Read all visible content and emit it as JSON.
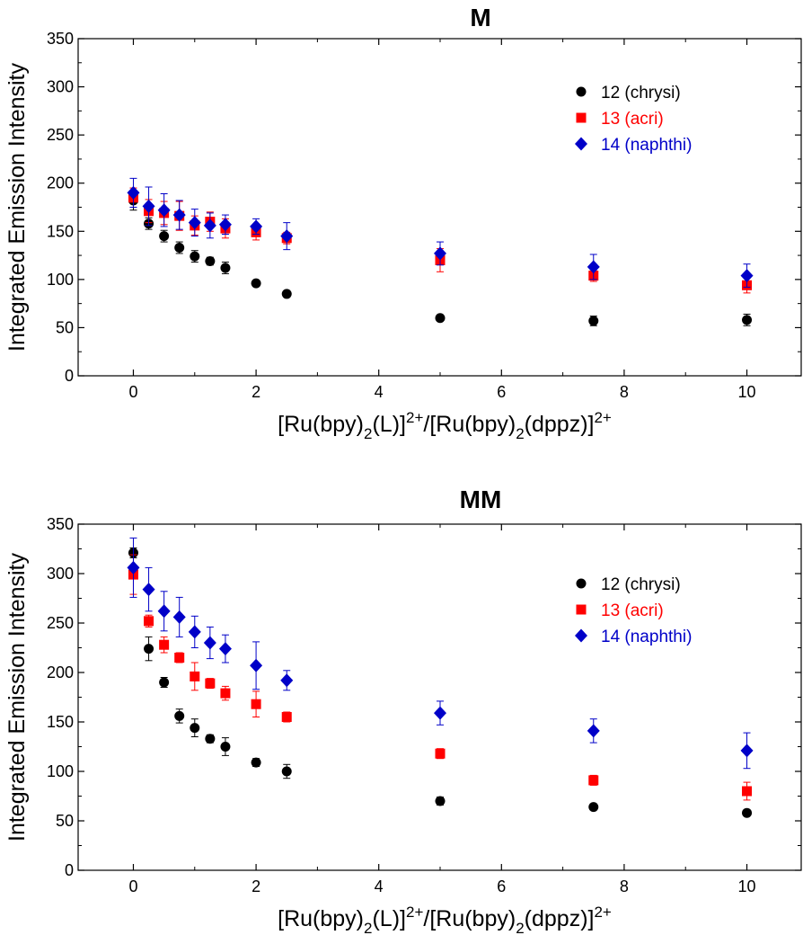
{
  "colors": {
    "12": "#000000",
    "13": "#ff0000",
    "14": "#0000c8"
  },
  "chart_data": [
    {
      "type": "scatter",
      "title": "M",
      "xlabel": "[Ru(bpy)2(L)]2+/[Ru(bpy)2(dppz)]2+",
      "ylabel": "Integrated Emission Intensity",
      "xlim": [
        -0.9,
        10.9
      ],
      "ylim": [
        0,
        350
      ],
      "xticks": [
        "0",
        "2",
        "4",
        "6",
        "8",
        "10"
      ],
      "yticks": [
        "0",
        "50",
        "100",
        "150",
        "200",
        "250",
        "300",
        "350"
      ],
      "legend_position": "top-right",
      "series": [
        {
          "name": "12 (chrysi)",
          "marker": "circle",
          "color": "#000000",
          "x": [
            0,
            0.25,
            0.5,
            0.75,
            1,
            1.25,
            1.5,
            2,
            2.5,
            5,
            7.5,
            10
          ],
          "y": [
            182,
            158,
            145,
            133,
            124,
            119,
            112,
            96,
            85,
            60,
            57,
            58
          ],
          "err": [
            10,
            6,
            6,
            6,
            6,
            4,
            6,
            3,
            3,
            3,
            5,
            6
          ]
        },
        {
          "name": "13 (acri)",
          "marker": "square",
          "color": "#ff0000",
          "x": [
            0,
            0.25,
            0.5,
            0.75,
            1,
            1.25,
            1.5,
            2,
            2.5,
            5,
            7.5,
            10
          ],
          "y": [
            185,
            171,
            169,
            166,
            156,
            160,
            153,
            149,
            143,
            120,
            104,
            94
          ],
          "err": [
            10,
            12,
            12,
            15,
            10,
            10,
            10,
            8,
            6,
            12,
            6,
            8
          ]
        },
        {
          "name": "14 (naphthi)",
          "marker": "diamond",
          "color": "#0000c8",
          "x": [
            0,
            0.25,
            0.5,
            0.75,
            1,
            1.25,
            1.5,
            2,
            2.5,
            5,
            7.5,
            10
          ],
          "y": [
            190,
            176,
            172,
            167,
            159,
            156,
            157,
            155,
            145,
            127,
            113,
            104
          ],
          "err": [
            15,
            20,
            17,
            15,
            14,
            13,
            10,
            8,
            14,
            12,
            13,
            12
          ]
        }
      ]
    },
    {
      "type": "scatter",
      "title": "MM",
      "xlabel": "[Ru(bpy)2(L)]2+/[Ru(bpy)2(dppz)]2+",
      "ylabel": "Integrated Emission Intensity",
      "xlim": [
        -0.9,
        10.9
      ],
      "ylim": [
        0,
        350
      ],
      "xticks": [
        "0",
        "2",
        "4",
        "6",
        "8",
        "10"
      ],
      "yticks": [
        "0",
        "50",
        "100",
        "150",
        "200",
        "250",
        "300",
        "350"
      ],
      "legend_position": "top-right",
      "series": [
        {
          "name": "12 (chrysi)",
          "marker": "circle",
          "color": "#000000",
          "x": [
            0,
            0.25,
            0.5,
            0.75,
            1,
            1.25,
            1.5,
            2,
            2.5,
            5,
            7.5,
            10
          ],
          "y": [
            321,
            224,
            190,
            156,
            144,
            133,
            125,
            109,
            100,
            70,
            64,
            58
          ],
          "err": [
            5,
            12,
            5,
            7,
            9,
            4,
            9,
            4,
            7,
            4,
            3,
            3
          ]
        },
        {
          "name": "13 (acri)",
          "marker": "square",
          "color": "#ff0000",
          "x": [
            0,
            0.25,
            0.5,
            0.75,
            1,
            1.25,
            1.5,
            2,
            2.5,
            5,
            7.5,
            10
          ],
          "y": [
            299,
            252,
            228,
            215,
            196,
            189,
            179,
            168,
            155,
            118,
            91,
            80
          ],
          "err": [
            20,
            6,
            8,
            5,
            14,
            5,
            7,
            13,
            5,
            5,
            5,
            9
          ]
        },
        {
          "name": "14 (naphthi)",
          "marker": "diamond",
          "color": "#0000c8",
          "x": [
            0,
            0.25,
            0.5,
            0.75,
            1,
            1.25,
            1.5,
            2,
            2.5,
            5,
            7.5,
            10
          ],
          "y": [
            306,
            284,
            262,
            256,
            241,
            230,
            224,
            207,
            192,
            159,
            141,
            121
          ],
          "err": [
            30,
            22,
            20,
            20,
            16,
            16,
            14,
            24,
            10,
            12,
            12,
            18
          ]
        }
      ]
    }
  ]
}
